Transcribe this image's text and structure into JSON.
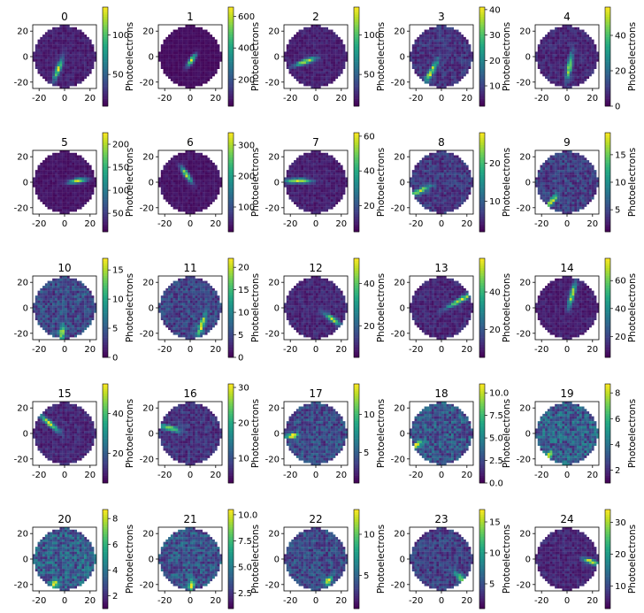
{
  "figure": {
    "colormap": "viridis",
    "colorbar_label": "Photoelectrons",
    "grid": false
  },
  "chart_data": [
    {
      "type": "heatmap",
      "title": "0",
      "xticks": [
        "-20",
        "0",
        "20"
      ],
      "yticks": [
        "20",
        "0",
        "-20"
      ],
      "xlim": [
        -25,
        25
      ],
      "ylim": [
        -25,
        25
      ],
      "cbar_ticks": [
        {
          "v": 50,
          "t": "50"
        },
        {
          "v": 100,
          "t": "100"
        }
      ],
      "cbar_range": [
        10,
        135
      ],
      "event": {
        "x": -5,
        "y": -10,
        "len": 12,
        "angle": 70,
        "bg": 0.12,
        "peak": 1.0
      }
    },
    {
      "type": "heatmap",
      "title": "1",
      "xticks": [
        "-20",
        "0",
        "20"
      ],
      "yticks": [
        "20",
        "0",
        "-20"
      ],
      "xlim": [
        -25,
        25
      ],
      "ylim": [
        -25,
        25
      ],
      "cbar_ticks": [
        {
          "v": 200,
          "t": "200"
        },
        {
          "v": 400,
          "t": "400"
        },
        {
          "v": 600,
          "t": "600"
        }
      ],
      "cbar_range": [
        30,
        660
      ],
      "event": {
        "x": 1,
        "y": -3,
        "len": 8,
        "angle": 55,
        "bg": 0.05,
        "peak": 1.0
      }
    },
    {
      "type": "heatmap",
      "title": "2",
      "xticks": [
        "-20",
        "0",
        "20"
      ],
      "yticks": [
        "20",
        "0",
        "-20"
      ],
      "xlim": [
        -25,
        25
      ],
      "ylim": [
        -25,
        25
      ],
      "cbar_ticks": [
        {
          "v": 50,
          "t": "50"
        },
        {
          "v": 100,
          "t": "100"
        }
      ],
      "cbar_range": [
        10,
        135
      ],
      "event": {
        "x": -8,
        "y": -4,
        "len": 12,
        "angle": 20,
        "bg": 0.12,
        "peak": 1.0
      }
    },
    {
      "type": "heatmap",
      "title": "3",
      "xticks": [
        "-20",
        "0",
        "20"
      ],
      "yticks": [
        "20",
        "0",
        "-20"
      ],
      "xlim": [
        -25,
        25
      ],
      "ylim": [
        -25,
        25
      ],
      "cbar_ticks": [
        {
          "v": 10,
          "t": "10"
        },
        {
          "v": 20,
          "t": "20"
        },
        {
          "v": 30,
          "t": "30"
        },
        {
          "v": 40,
          "t": "40"
        }
      ],
      "cbar_range": [
        2,
        41
      ],
      "event": {
        "x": -8,
        "y": -12,
        "len": 14,
        "angle": 60,
        "bg": 0.2,
        "peak": 0.9
      }
    },
    {
      "type": "heatmap",
      "title": "4",
      "xticks": [
        "-20",
        "0",
        "20"
      ],
      "yticks": [
        "20",
        "0",
        "-20"
      ],
      "xlim": [
        -25,
        25
      ],
      "ylim": [
        -25,
        25
      ],
      "cbar_ticks": [
        {
          "v": 0,
          "t": "0"
        },
        {
          "v": 20,
          "t": "20"
        },
        {
          "v": 40,
          "t": "40"
        }
      ],
      "cbar_range": [
        0,
        56
      ],
      "event": {
        "x": 2,
        "y": -8,
        "len": 14,
        "angle": 80,
        "bg": 0.15,
        "peak": 0.95
      }
    },
    {
      "type": "heatmap",
      "title": "5",
      "xticks": [
        "-20",
        "0",
        "20"
      ],
      "yticks": [
        "20",
        "0",
        "-20"
      ],
      "xlim": [
        -25,
        25
      ],
      "ylim": [
        -25,
        25
      ],
      "cbar_ticks": [
        {
          "v": 50,
          "t": "50"
        },
        {
          "v": 100,
          "t": "100"
        },
        {
          "v": 150,
          "t": "150"
        },
        {
          "v": 200,
          "t": "200"
        }
      ],
      "cbar_range": [
        10,
        225
      ],
      "event": {
        "x": 10,
        "y": 1,
        "len": 10,
        "angle": 10,
        "bg": 0.08,
        "peak": 1.0
      }
    },
    {
      "type": "heatmap",
      "title": "6",
      "xticks": [
        "-20",
        "0",
        "20"
      ],
      "yticks": [
        "20",
        "0",
        "-20"
      ],
      "xlim": [
        -25,
        25
      ],
      "ylim": [
        -25,
        25
      ],
      "cbar_ticks": [
        {
          "v": 100,
          "t": "100"
        },
        {
          "v": 200,
          "t": "200"
        },
        {
          "v": 300,
          "t": "300"
        }
      ],
      "cbar_range": [
        20,
        340
      ],
      "event": {
        "x": -3,
        "y": 6,
        "len": 10,
        "angle": -55,
        "bg": 0.08,
        "peak": 1.0
      }
    },
    {
      "type": "heatmap",
      "title": "7",
      "xticks": [
        "-20",
        "0",
        "20"
      ],
      "yticks": [
        "20",
        "0",
        "-20"
      ],
      "xlim": [
        -25,
        25
      ],
      "ylim": [
        -25,
        25
      ],
      "cbar_ticks": [
        {
          "v": 20,
          "t": "20"
        },
        {
          "v": 40,
          "t": "40"
        },
        {
          "v": 60,
          "t": "60"
        }
      ],
      "cbar_range": [
        5,
        62
      ],
      "event": {
        "x": -14,
        "y": 1,
        "len": 14,
        "angle": 0,
        "bg": 0.12,
        "peak": 1.0
      }
    },
    {
      "type": "heatmap",
      "title": "8",
      "xticks": [
        "-20",
        "0",
        "20"
      ],
      "yticks": [
        "20",
        "0",
        "-20"
      ],
      "xlim": [
        -25,
        25
      ],
      "ylim": [
        -25,
        25
      ],
      "cbar_ticks": [
        {
          "v": 10,
          "t": "10"
        },
        {
          "v": 20,
          "t": "20"
        }
      ],
      "cbar_range": [
        2,
        28
      ],
      "event": {
        "x": -17,
        "y": -7,
        "len": 12,
        "angle": 25,
        "bg": 0.22,
        "peak": 0.9
      }
    },
    {
      "type": "heatmap",
      "title": "9",
      "xticks": [
        "-20",
        "0",
        "20"
      ],
      "yticks": [
        "20",
        "0",
        "-20"
      ],
      "xlim": [
        -25,
        25
      ],
      "ylim": [
        -25,
        25
      ],
      "cbar_ticks": [
        {
          "v": 5,
          "t": "5"
        },
        {
          "v": 10,
          "t": "10"
        },
        {
          "v": 15,
          "t": "15"
        }
      ],
      "cbar_range": [
        1,
        19
      ],
      "event": {
        "x": -12,
        "y": -15,
        "len": 10,
        "angle": 50,
        "bg": 0.25,
        "peak": 0.9
      }
    },
    {
      "type": "heatmap",
      "title": "10",
      "xticks": [
        "-20",
        "0",
        "20"
      ],
      "yticks": [
        "20",
        "0",
        "-20"
      ],
      "xlim": [
        -25,
        25
      ],
      "ylim": [
        -25,
        25
      ],
      "cbar_ticks": [
        {
          "v": 0,
          "t": "0"
        },
        {
          "v": 5,
          "t": "5"
        },
        {
          "v": 10,
          "t": "10"
        },
        {
          "v": 15,
          "t": "15"
        }
      ],
      "cbar_range": [
        0,
        17
      ],
      "event": {
        "x": -2,
        "y": -20,
        "len": 8,
        "angle": 80,
        "bg": 0.3,
        "peak": 0.95
      }
    },
    {
      "type": "heatmap",
      "title": "11",
      "xticks": [
        "-20",
        "0",
        "20"
      ],
      "yticks": [
        "20",
        "0",
        "-20"
      ],
      "xlim": [
        -25,
        25
      ],
      "ylim": [
        -25,
        25
      ],
      "cbar_ticks": [
        {
          "v": 0,
          "t": "0"
        },
        {
          "v": 5,
          "t": "5"
        },
        {
          "v": 10,
          "t": "10"
        },
        {
          "v": 15,
          "t": "15"
        },
        {
          "v": 20,
          "t": "20"
        }
      ],
      "cbar_range": [
        0,
        22
      ],
      "event": {
        "x": 9,
        "y": -14,
        "len": 12,
        "angle": 70,
        "bg": 0.28,
        "peak": 0.9
      }
    },
    {
      "type": "heatmap",
      "title": "12",
      "xticks": [
        "-20",
        "0",
        "20"
      ],
      "yticks": [
        "20",
        "0",
        "-20"
      ],
      "xlim": [
        -25,
        25
      ],
      "ylim": [
        -25,
        25
      ],
      "cbar_ticks": [
        {
          "v": 20,
          "t": "20"
        },
        {
          "v": 40,
          "t": "40"
        }
      ],
      "cbar_range": [
        5,
        52
      ],
      "event": {
        "x": 13,
        "y": -9,
        "len": 10,
        "angle": -35,
        "bg": 0.15,
        "peak": 0.95
      }
    },
    {
      "type": "heatmap",
      "title": "13",
      "xticks": [
        "-20",
        "0",
        "20"
      ],
      "yticks": [
        "20",
        "0",
        "-20"
      ],
      "xlim": [
        -25,
        25
      ],
      "ylim": [
        -25,
        25
      ],
      "cbar_ticks": [
        {
          "v": 20,
          "t": "20"
        },
        {
          "v": 40,
          "t": "40"
        }
      ],
      "cbar_range": [
        5,
        58
      ],
      "event": {
        "x": 15,
        "y": 6,
        "len": 16,
        "angle": 30,
        "bg": 0.15,
        "peak": 0.95
      }
    },
    {
      "type": "heatmap",
      "title": "14",
      "xticks": [
        "-20",
        "0",
        "20"
      ],
      "yticks": [
        "20",
        "0",
        "-20"
      ],
      "xlim": [
        -25,
        25
      ],
      "ylim": [
        -25,
        25
      ],
      "cbar_ticks": [
        {
          "v": 20,
          "t": "20"
        },
        {
          "v": 40,
          "t": "40"
        },
        {
          "v": 60,
          "t": "60"
        }
      ],
      "cbar_range": [
        5,
        76
      ],
      "event": {
        "x": 4,
        "y": 10,
        "len": 14,
        "angle": 75,
        "bg": 0.12,
        "peak": 1.0
      }
    },
    {
      "type": "heatmap",
      "title": "15",
      "xticks": [
        "-20",
        "0",
        "20"
      ],
      "yticks": [
        "20",
        "0",
        "-20"
      ],
      "xlim": [
        -25,
        25
      ],
      "ylim": [
        -25,
        25
      ],
      "cbar_ticks": [
        {
          "v": 20,
          "t": "20"
        },
        {
          "v": 40,
          "t": "40"
        }
      ],
      "cbar_range": [
        5,
        55
      ],
      "event": {
        "x": -12,
        "y": 8,
        "len": 14,
        "angle": -40,
        "bg": 0.15,
        "peak": 0.95
      }
    },
    {
      "type": "heatmap",
      "title": "16",
      "xticks": [
        "-20",
        "0",
        "20"
      ],
      "yticks": [
        "20",
        "0",
        "-20"
      ],
      "xlim": [
        -25,
        25
      ],
      "ylim": [
        -25,
        25
      ],
      "cbar_ticks": [
        {
          "v": 10,
          "t": "10"
        },
        {
          "v": 20,
          "t": "20"
        },
        {
          "v": 30,
          "t": "30"
        }
      ],
      "cbar_range": [
        3,
        31
      ],
      "event": {
        "x": -16,
        "y": 4,
        "len": 12,
        "angle": -15,
        "bg": 0.2,
        "peak": 0.9
      }
    },
    {
      "type": "heatmap",
      "title": "17",
      "xticks": [
        "-20",
        "0",
        "20"
      ],
      "yticks": [
        "20",
        "0",
        "-20"
      ],
      "xlim": [
        -25,
        25
      ],
      "ylim": [
        -25,
        25
      ],
      "cbar_ticks": [
        {
          "v": 5,
          "t": "5"
        },
        {
          "v": 10,
          "t": "10"
        }
      ],
      "cbar_range": [
        1,
        14
      ],
      "event": {
        "x": -19,
        "y": -2,
        "len": 8,
        "angle": 10,
        "bg": 0.3,
        "peak": 0.9
      }
    },
    {
      "type": "heatmap",
      "title": "18",
      "xticks": [
        "-20",
        "0",
        "20"
      ],
      "yticks": [
        "20",
        "0",
        "-20"
      ],
      "xlim": [
        -25,
        25
      ],
      "ylim": [
        -25,
        25
      ],
      "cbar_ticks": [
        {
          "v": 0,
          "t": "0.0"
        },
        {
          "v": 2.5,
          "t": "2.5"
        },
        {
          "v": 5,
          "t": "5.0"
        },
        {
          "v": 7.5,
          "t": "7.5"
        },
        {
          "v": 10,
          "t": "10.0"
        }
      ],
      "cbar_range": [
        0,
        11
      ],
      "event": {
        "x": -19,
        "y": -9,
        "len": 6,
        "angle": 35,
        "bg": 0.35,
        "peak": 0.9
      }
    },
    {
      "type": "heatmap",
      "title": "19",
      "xticks": [
        "-20",
        "0",
        "20"
      ],
      "yticks": [
        "20",
        "0",
        "-20"
      ],
      "xlim": [
        -25,
        25
      ],
      "ylim": [
        -25,
        25
      ],
      "cbar_ticks": [
        {
          "v": 2,
          "t": "2"
        },
        {
          "v": 4,
          "t": "4"
        },
        {
          "v": 6,
          "t": "6"
        },
        {
          "v": 8,
          "t": "8"
        }
      ],
      "cbar_range": [
        1,
        8.7
      ],
      "event": {
        "x": -14,
        "y": -17,
        "len": 5,
        "angle": 60,
        "bg": 0.4,
        "peak": 0.9
      }
    },
    {
      "type": "heatmap",
      "title": "20",
      "xticks": [
        "-20",
        "0",
        "20"
      ],
      "yticks": [
        "20",
        "0",
        "-20"
      ],
      "xlim": [
        -25,
        25
      ],
      "ylim": [
        -25,
        25
      ],
      "cbar_ticks": [
        {
          "v": 2,
          "t": "2"
        },
        {
          "v": 4,
          "t": "4"
        },
        {
          "v": 6,
          "t": "6"
        },
        {
          "v": 8,
          "t": "8"
        }
      ],
      "cbar_range": [
        1,
        8.7
      ],
      "event": {
        "x": -8,
        "y": -20,
        "len": 5,
        "angle": 60,
        "bg": 0.4,
        "peak": 0.9
      }
    },
    {
      "type": "heatmap",
      "title": "21",
      "xticks": [
        "-20",
        "0",
        "20"
      ],
      "yticks": [
        "20",
        "0",
        "-20"
      ],
      "xlim": [
        -25,
        25
      ],
      "ylim": [
        -25,
        25
      ],
      "cbar_ticks": [
        {
          "v": 2.5,
          "t": "2.5"
        },
        {
          "v": 5,
          "t": "5.0"
        },
        {
          "v": 7.5,
          "t": "7.5"
        },
        {
          "v": 10,
          "t": "10.0"
        }
      ],
      "cbar_range": [
        1,
        10.5
      ],
      "event": {
        "x": 1,
        "y": -20,
        "len": 6,
        "angle": 80,
        "bg": 0.35,
        "peak": 0.9
      }
    },
    {
      "type": "heatmap",
      "title": "22",
      "xticks": [
        "-20",
        "0",
        "20"
      ],
      "yticks": [
        "20",
        "0",
        "-20"
      ],
      "xlim": [
        -25,
        25
      ],
      "ylim": [
        -25,
        25
      ],
      "cbar_ticks": [
        {
          "v": 5,
          "t": "5"
        },
        {
          "v": 10,
          "t": "10"
        }
      ],
      "cbar_range": [
        1,
        13
      ],
      "event": {
        "x": 10,
        "y": -17,
        "len": 6,
        "angle": 60,
        "bg": 0.3,
        "peak": 0.9
      }
    },
    {
      "type": "heatmap",
      "title": "23",
      "xticks": [
        "-20",
        "0",
        "20"
      ],
      "yticks": [
        "20",
        "0",
        "-20"
      ],
      "xlim": [
        -25,
        25
      ],
      "ylim": [
        -25,
        25
      ],
      "cbar_ticks": [
        {
          "v": 5,
          "t": "5"
        },
        {
          "v": 10,
          "t": "10"
        },
        {
          "v": 15,
          "t": "15"
        }
      ],
      "cbar_range": [
        1,
        17
      ],
      "event": {
        "x": 16,
        "y": -16,
        "len": 10,
        "angle": -45,
        "bg": 0.25,
        "peak": 0.9
      }
    },
    {
      "type": "heatmap",
      "title": "24",
      "xticks": [
        "-20",
        "0",
        "20"
      ],
      "yticks": [
        "20",
        "0",
        "-20"
      ],
      "xlim": [
        -25,
        25
      ],
      "ylim": [
        -25,
        25
      ],
      "cbar_ticks": [
        {
          "v": 10,
          "t": "10"
        },
        {
          "v": 20,
          "t": "20"
        },
        {
          "v": 30,
          "t": "30"
        }
      ],
      "cbar_range": [
        3,
        34
      ],
      "event": {
        "x": 19,
        "y": -2,
        "len": 10,
        "angle": -20,
        "bg": 0.15,
        "peak": 0.95
      }
    }
  ]
}
